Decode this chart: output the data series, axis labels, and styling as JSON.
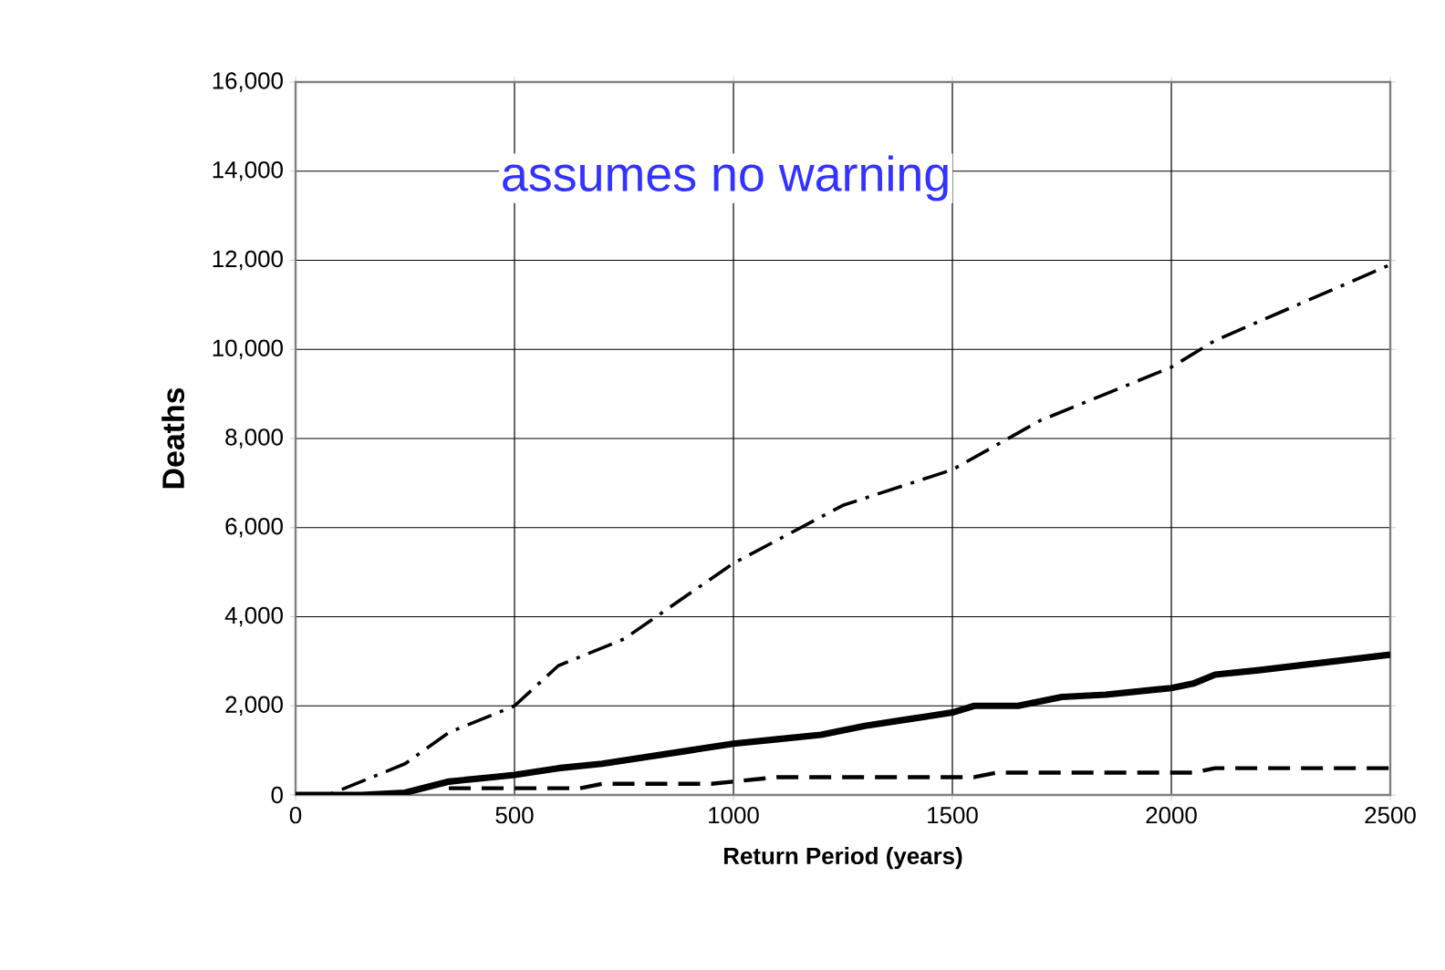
{
  "chart_data": {
    "type": "line",
    "xlabel": "Return Period (years)",
    "ylabel": "Deaths",
    "annotations": [
      "assumes no warning"
    ],
    "xlim": [
      0,
      2500
    ],
    "ylim": [
      0,
      16000
    ],
    "xticks": [
      0,
      500,
      1000,
      1500,
      2000,
      2500
    ],
    "yticks": [
      0,
      {
        "value": 2000,
        "label": "2,000"
      },
      {
        "value": 4000,
        "label": "4,000"
      },
      {
        "value": 6000,
        "label": "6,000"
      },
      {
        "value": 8000,
        "label": "8,000"
      },
      {
        "value": 10000,
        "label": "10,000"
      },
      {
        "value": 12000,
        "label": "12,000"
      },
      {
        "value": 14000,
        "label": "14,000"
      },
      {
        "value": 16000,
        "label": "16,000"
      }
    ],
    "grid": true,
    "marker": "none",
    "series": [
      {
        "color": "#000000",
        "line_style": "dashdot",
        "x": [
          0,
          75,
          250,
          350,
          500,
          600,
          750,
          1000,
          1250,
          1500,
          1700,
          2000,
          2100,
          2500
        ],
        "values": [
          0,
          0,
          700,
          1400,
          2000,
          2900,
          3500,
          5200,
          6500,
          7300,
          8400,
          9600,
          10200,
          11900
        ]
      },
      {
        "color": "#000000",
        "line_style": "solid",
        "x": [
          0,
          150,
          250,
          350,
          450,
          500,
          600,
          700,
          800,
          900,
          1000,
          1100,
          1200,
          1300,
          1400,
          1500,
          1550,
          1650,
          1750,
          1850,
          2000,
          2050,
          2100,
          2200,
          2500
        ],
        "values": [
          0,
          0,
          50,
          300,
          400,
          450,
          600,
          700,
          850,
          1000,
          1150,
          1250,
          1350,
          1550,
          1700,
          1850,
          2000,
          2000,
          2200,
          2250,
          2400,
          2500,
          2700,
          2800,
          3150
        ]
      },
      {
        "color": "#000000",
        "line_style": "dashed",
        "x": [
          350,
          650,
          700,
          950,
          1100,
          1550,
          1600,
          2050,
          2100,
          2500
        ],
        "values": [
          150,
          150,
          250,
          250,
          400,
          400,
          500,
          500,
          600,
          600
        ]
      }
    ]
  }
}
